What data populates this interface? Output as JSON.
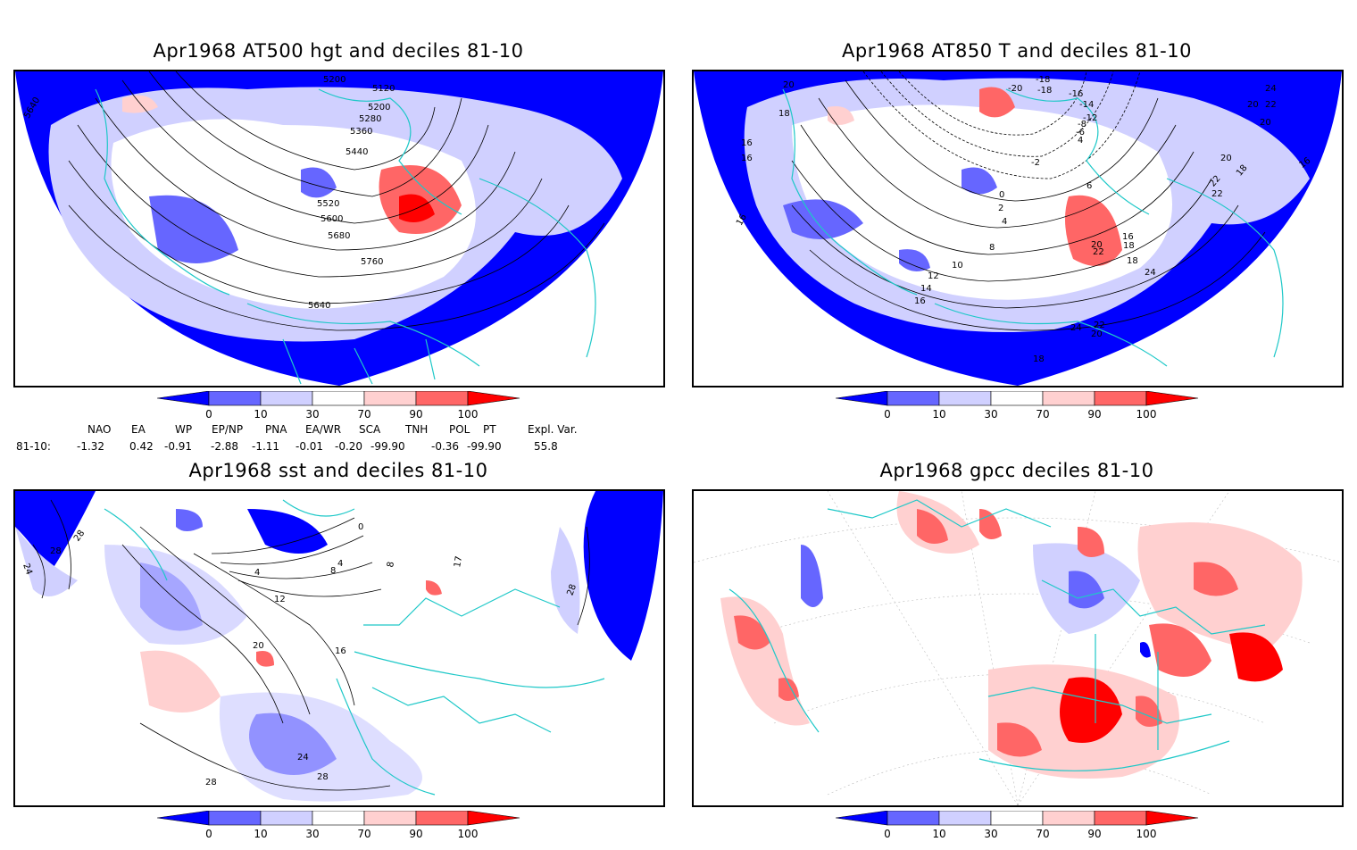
{
  "panels": [
    {
      "title": "Apr1968 AT500 hgt and deciles 81-10"
    },
    {
      "title": "Apr1968 AT850 T and deciles 81-10"
    },
    {
      "title": "Apr1968 sst and deciles 81-10"
    },
    {
      "title": "Apr1968 gpcc deciles 81-10"
    }
  ],
  "colorbar": {
    "ticks": [
      "0",
      "10",
      "30",
      "70",
      "90",
      "100"
    ],
    "colors": [
      "#0000ff",
      "#6666ff",
      "#d0d0ff",
      "#ffffff",
      "#ffd0d0",
      "#ff6666",
      "#ff0000"
    ]
  },
  "indices": {
    "headers": [
      "NAO",
      "EA",
      "WP",
      "EP/NP",
      "PNA",
      "EA/WR",
      "SCA",
      "TNH",
      "POL",
      "PT",
      "Expl. Var."
    ],
    "row_label": "81-10:",
    "values": [
      "-1.32",
      "0.42",
      "-0.91",
      "-2.88",
      "-1.11",
      "-0.01",
      "-0.20",
      "-99.90",
      "-0.36",
      "-99.90",
      "55.8"
    ]
  },
  "contour_labels": {
    "hgt500": [
      "5200",
      "5120",
      "5200",
      "5280",
      "5360",
      "5440",
      "5520",
      "5600",
      "5680",
      "5760",
      "5640",
      "5640"
    ],
    "t850": [
      "-18",
      "-20",
      "-18",
      "-16",
      "-14",
      "-12",
      "-8",
      "-6",
      "4",
      "-2",
      "0",
      "2",
      "4",
      "6",
      "8",
      "10",
      "12",
      "14",
      "16",
      "16",
      "18",
      "20",
      "22",
      "24",
      "22",
      "20",
      "18",
      "16",
      "16",
      "16",
      "18",
      "20",
      "24",
      "22",
      "20",
      "24",
      "22",
      "20",
      "18",
      "16",
      "18",
      "20",
      "22"
    ],
    "sst": [
      "28",
      "28",
      "24",
      "0",
      "4",
      "8",
      "12",
      "16",
      "20",
      "24",
      "28",
      "28",
      "28",
      "4",
      "8",
      "17"
    ]
  },
  "colors": {
    "coast": "#1ec8c8",
    "deep_blue": "#0000ff",
    "mid_blue": "#6666ff",
    "light_blue": "#d0d0ff",
    "light_red": "#ffd0d0",
    "mid_red": "#ff6666",
    "deep_red": "#ff0000"
  }
}
